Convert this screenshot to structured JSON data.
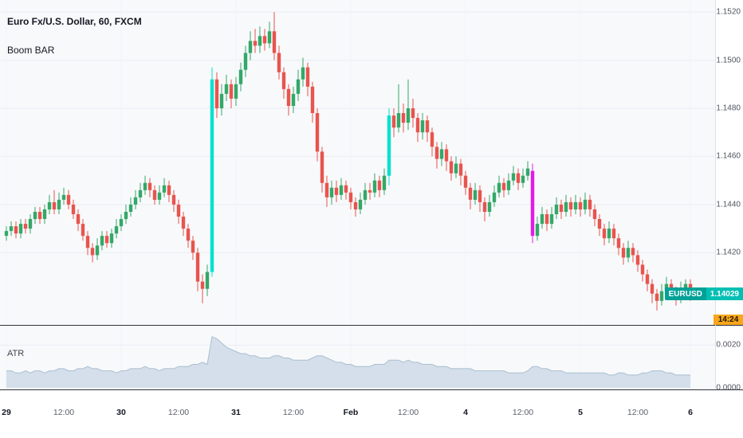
{
  "legend": {
    "title": "Euro Fx/U.S. Dollar, 60, FXCM",
    "indicator": "Boom BAR"
  },
  "price_scale": {
    "last_symbol": "EURUSD",
    "last_price": "1.14029",
    "countdown": "14:24"
  },
  "atr": {
    "label": "ATR"
  },
  "colors": {
    "pane_bg": "#f8f9fb",
    "grid": "#e9edf3",
    "grid_v": "#eff2f7",
    "divider": "#2f333c",
    "up": "#33a868",
    "down": "#e8544e",
    "boom_up": "#00e2cf",
    "boom_down": "#e51ae5",
    "atr_fill": "#d4dfeb",
    "atr_line": "#a9becf",
    "price_label_sym_bg": "#00a197",
    "price_label_bg": "#00bfb3",
    "countdown_bg": "#f8a61b",
    "countdown_text": "#201600"
  },
  "chart_data": [
    {
      "type": "candlestick",
      "pane": "price",
      "title": "Euro Fx/U.S. Dollar, 60, FXCM",
      "y_tick_labels": [
        "1.1520",
        "1.1500",
        "1.1480",
        "1.1460",
        "1.1440",
        "1.1420"
      ],
      "ylim": [
        1.139,
        1.1525
      ],
      "last_price": 1.14029,
      "boom_up_indices": [
        43,
        80
      ],
      "boom_down_indices": [
        110
      ],
      "time_labels": [
        {
          "i": 0,
          "label": "29",
          "major": true
        },
        {
          "i": 12,
          "label": "12:00",
          "major": false
        },
        {
          "i": 24,
          "label": "30",
          "major": true
        },
        {
          "i": 36,
          "label": "12:00",
          "major": false
        },
        {
          "i": 48,
          "label": "31",
          "major": true
        },
        {
          "i": 60,
          "label": "12:00",
          "major": false
        },
        {
          "i": 72,
          "label": "Feb",
          "major": true
        },
        {
          "i": 84,
          "label": "12:00",
          "major": false
        },
        {
          "i": 96,
          "label": "4",
          "major": true
        },
        {
          "i": 108,
          "label": "12:00",
          "major": false
        },
        {
          "i": 120,
          "label": "5",
          "major": true
        },
        {
          "i": 132,
          "label": "12:00",
          "major": false
        },
        {
          "i": 143,
          "label": "6",
          "major": true
        }
      ],
      "candles": [
        [
          1.1427,
          1.1431,
          1.1425,
          1.1429
        ],
        [
          1.1429,
          1.1433,
          1.1427,
          1.1431
        ],
        [
          1.1431,
          1.1433,
          1.1426,
          1.1428
        ],
        [
          1.1428,
          1.1434,
          1.1426,
          1.1432
        ],
        [
          1.1432,
          1.1434,
          1.1428,
          1.143
        ],
        [
          1.143,
          1.1436,
          1.1428,
          1.1434
        ],
        [
          1.1434,
          1.1439,
          1.1432,
          1.1437
        ],
        [
          1.1437,
          1.1439,
          1.1432,
          1.1434
        ],
        [
          1.1434,
          1.144,
          1.1432,
          1.1438
        ],
        [
          1.1438,
          1.1444,
          1.1436,
          1.1441
        ],
        [
          1.1441,
          1.1446,
          1.1436,
          1.1438
        ],
        [
          1.1438,
          1.1445,
          1.1436,
          1.1442
        ],
        [
          1.1442,
          1.1447,
          1.144,
          1.1444
        ],
        [
          1.1444,
          1.1446,
          1.1438,
          1.144
        ],
        [
          1.144,
          1.1442,
          1.1434,
          1.1436
        ],
        [
          1.1436,
          1.1438,
          1.1429,
          1.1432
        ],
        [
          1.1432,
          1.1434,
          1.1425,
          1.1427
        ],
        [
          1.1427,
          1.1429,
          1.1419,
          1.1422
        ],
        [
          1.1422,
          1.1424,
          1.1416,
          1.1419
        ],
        [
          1.1419,
          1.1426,
          1.1417,
          1.1423
        ],
        [
          1.1423,
          1.1429,
          1.1421,
          1.1427
        ],
        [
          1.1427,
          1.1429,
          1.1422,
          1.1424
        ],
        [
          1.1424,
          1.143,
          1.1422,
          1.1428
        ],
        [
          1.1428,
          1.1434,
          1.1426,
          1.1431
        ],
        [
          1.1431,
          1.1436,
          1.1429,
          1.1434
        ],
        [
          1.1434,
          1.144,
          1.1432,
          1.1437
        ],
        [
          1.1437,
          1.1443,
          1.1435,
          1.144
        ],
        [
          1.144,
          1.1446,
          1.1438,
          1.1443
        ],
        [
          1.1443,
          1.1449,
          1.1441,
          1.1446
        ],
        [
          1.1446,
          1.1452,
          1.1444,
          1.1449
        ],
        [
          1.1449,
          1.1451,
          1.1443,
          1.1446
        ],
        [
          1.1446,
          1.1448,
          1.144,
          1.1442
        ],
        [
          1.1442,
          1.1448,
          1.144,
          1.1445
        ],
        [
          1.1445,
          1.1451,
          1.1443,
          1.1448
        ],
        [
          1.1448,
          1.145,
          1.1441,
          1.1444
        ],
        [
          1.1444,
          1.1446,
          1.1437,
          1.144
        ],
        [
          1.144,
          1.1442,
          1.1432,
          1.1435
        ],
        [
          1.1435,
          1.1437,
          1.1427,
          1.143
        ],
        [
          1.143,
          1.1432,
          1.1422,
          1.1425
        ],
        [
          1.1425,
          1.1427,
          1.1417,
          1.142
        ],
        [
          1.142,
          1.1422,
          1.1404,
          1.1408
        ],
        [
          1.1408,
          1.1411,
          1.1399,
          1.1405
        ],
        [
          1.1405,
          1.1415,
          1.1402,
          1.1412
        ],
        [
          1.1412,
          1.1497,
          1.141,
          1.1492
        ],
        [
          1.1492,
          1.1495,
          1.1476,
          1.148
        ],
        [
          1.148,
          1.149,
          1.1477,
          1.1486
        ],
        [
          1.1486,
          1.1494,
          1.1483,
          1.149
        ],
        [
          1.149,
          1.1492,
          1.148,
          1.1484
        ],
        [
          1.1484,
          1.1493,
          1.1481,
          1.149
        ],
        [
          1.149,
          1.1499,
          1.1487,
          1.1496
        ],
        [
          1.1496,
          1.1506,
          1.1493,
          1.1503
        ],
        [
          1.1503,
          1.1512,
          1.15,
          1.1508
        ],
        [
          1.1508,
          1.1513,
          1.1503,
          1.1506
        ],
        [
          1.1506,
          1.1514,
          1.1503,
          1.151
        ],
        [
          1.151,
          1.1513,
          1.1504,
          1.1507
        ],
        [
          1.1507,
          1.1516,
          1.1505,
          1.1512
        ],
        [
          1.1512,
          1.152,
          1.15,
          1.1503
        ],
        [
          1.1503,
          1.1506,
          1.1492,
          1.1495
        ],
        [
          1.1495,
          1.1497,
          1.1484,
          1.1488
        ],
        [
          1.1488,
          1.149,
          1.1477,
          1.1481
        ],
        [
          1.1481,
          1.1489,
          1.1478,
          1.1486
        ],
        [
          1.1486,
          1.1496,
          1.1483,
          1.1492
        ],
        [
          1.1492,
          1.1501,
          1.1489,
          1.1497
        ],
        [
          1.1497,
          1.1499,
          1.1485,
          1.1489
        ],
        [
          1.1489,
          1.1491,
          1.1474,
          1.1478
        ],
        [
          1.1478,
          1.148,
          1.1458,
          1.1462
        ],
        [
          1.1462,
          1.1464,
          1.1445,
          1.1449
        ],
        [
          1.1449,
          1.1452,
          1.1439,
          1.1443
        ],
        [
          1.1443,
          1.145,
          1.144,
          1.1447
        ],
        [
          1.1447,
          1.145,
          1.1441,
          1.1444
        ],
        [
          1.1444,
          1.1451,
          1.1442,
          1.1448
        ],
        [
          1.1448,
          1.145,
          1.1442,
          1.1445
        ],
        [
          1.1445,
          1.1447,
          1.1438,
          1.1441
        ],
        [
          1.1441,
          1.1443,
          1.1435,
          1.1438
        ],
        [
          1.1438,
          1.1445,
          1.1436,
          1.1442
        ],
        [
          1.1442,
          1.1449,
          1.144,
          1.1446
        ],
        [
          1.1446,
          1.1449,
          1.1442,
          1.1445
        ],
        [
          1.1445,
          1.1453,
          1.1443,
          1.145
        ],
        [
          1.145,
          1.1452,
          1.1443,
          1.1446
        ],
        [
          1.1446,
          1.1455,
          1.1444,
          1.1452
        ],
        [
          1.1452,
          1.148,
          1.1448,
          1.1477
        ],
        [
          1.1477,
          1.148,
          1.1468,
          1.1472
        ],
        [
          1.1472,
          1.149,
          1.147,
          1.1478
        ],
        [
          1.1478,
          1.1482,
          1.147,
          1.1474
        ],
        [
          1.1474,
          1.1492,
          1.1471,
          1.148
        ],
        [
          1.148,
          1.1484,
          1.1472,
          1.1476
        ],
        [
          1.1476,
          1.1478,
          1.1466,
          1.147
        ],
        [
          1.147,
          1.1478,
          1.1467,
          1.1475
        ],
        [
          1.1475,
          1.1477,
          1.1466,
          1.147
        ],
        [
          1.147,
          1.1472,
          1.146,
          1.1464
        ],
        [
          1.1464,
          1.1466,
          1.1455,
          1.1459
        ],
        [
          1.1459,
          1.1466,
          1.1456,
          1.1463
        ],
        [
          1.1463,
          1.1465,
          1.1454,
          1.1458
        ],
        [
          1.1458,
          1.146,
          1.145,
          1.1453
        ],
        [
          1.1453,
          1.146,
          1.1451,
          1.1457
        ],
        [
          1.1457,
          1.1459,
          1.1448,
          1.1452
        ],
        [
          1.1452,
          1.1454,
          1.1444,
          1.1447
        ],
        [
          1.1447,
          1.1449,
          1.1438,
          1.1442
        ],
        [
          1.1442,
          1.1449,
          1.144,
          1.1446
        ],
        [
          1.1446,
          1.1448,
          1.1437,
          1.1441
        ],
        [
          1.1441,
          1.1443,
          1.1433,
          1.1437
        ],
        [
          1.1437,
          1.1444,
          1.1435,
          1.1441
        ],
        [
          1.1441,
          1.1448,
          1.1439,
          1.1445
        ],
        [
          1.1445,
          1.1452,
          1.1443,
          1.1449
        ],
        [
          1.1449,
          1.1451,
          1.1443,
          1.1446
        ],
        [
          1.1446,
          1.1453,
          1.1444,
          1.145
        ],
        [
          1.145,
          1.1456,
          1.1448,
          1.1453
        ],
        [
          1.1453,
          1.1455,
          1.1446,
          1.1449
        ],
        [
          1.1449,
          1.1455,
          1.1447,
          1.1452
        ],
        [
          1.1452,
          1.1458,
          1.145,
          1.1455
        ],
        [
          1.1454,
          1.1457,
          1.1424,
          1.1427
        ],
        [
          1.1427,
          1.1435,
          1.1425,
          1.1432
        ],
        [
          1.1432,
          1.1439,
          1.143,
          1.1436
        ],
        [
          1.1436,
          1.1438,
          1.1429,
          1.1432
        ],
        [
          1.1432,
          1.1439,
          1.143,
          1.1436
        ],
        [
          1.1436,
          1.1443,
          1.1434,
          1.144
        ],
        [
          1.144,
          1.1442,
          1.1434,
          1.1437
        ],
        [
          1.1437,
          1.1444,
          1.1435,
          1.1441
        ],
        [
          1.1441,
          1.1443,
          1.1435,
          1.1438
        ],
        [
          1.1438,
          1.1444,
          1.1436,
          1.1441
        ],
        [
          1.1441,
          1.1443,
          1.1435,
          1.1438
        ],
        [
          1.1438,
          1.1445,
          1.1436,
          1.1442
        ],
        [
          1.1442,
          1.1444,
          1.1435,
          1.1438
        ],
        [
          1.1438,
          1.144,
          1.1431,
          1.1434
        ],
        [
          1.1434,
          1.1436,
          1.1427,
          1.143
        ],
        [
          1.143,
          1.1432,
          1.1423,
          1.1426
        ],
        [
          1.1426,
          1.1433,
          1.1424,
          1.143
        ],
        [
          1.143,
          1.1432,
          1.1423,
          1.1426
        ],
        [
          1.1426,
          1.1428,
          1.1419,
          1.1422
        ],
        [
          1.1422,
          1.1424,
          1.1415,
          1.1418
        ],
        [
          1.1418,
          1.1425,
          1.1416,
          1.1422
        ],
        [
          1.1422,
          1.1424,
          1.1416,
          1.1419
        ],
        [
          1.1419,
          1.1421,
          1.1412,
          1.1415
        ],
        [
          1.1415,
          1.1417,
          1.1408,
          1.1411
        ],
        [
          1.1411,
          1.1413,
          1.1404,
          1.1407
        ],
        [
          1.1407,
          1.1409,
          1.1399,
          1.1403
        ],
        [
          1.1403,
          1.1405,
          1.1396,
          1.14
        ],
        [
          1.14,
          1.1407,
          1.1398,
          1.1404
        ],
        [
          1.1404,
          1.141,
          1.1402,
          1.1407
        ],
        [
          1.1407,
          1.1409,
          1.1401,
          1.1404
        ],
        [
          1.1404,
          1.1406,
          1.1398,
          1.1401
        ],
        [
          1.1401,
          1.1408,
          1.1399,
          1.1405
        ],
        [
          1.1405,
          1.1409,
          1.1403,
          1.1407
        ],
        [
          1.1407,
          1.1409,
          1.14,
          1.14029
        ]
      ]
    },
    {
      "type": "area",
      "pane": "indicator",
      "name": "ATR",
      "y_tick_labels": [
        "0.0020",
        "0.0000"
      ],
      "ylim": [
        0,
        0.0028
      ],
      "values": [
        0.0008,
        0.0008,
        0.0007,
        0.0007,
        0.0008,
        0.0007,
        0.0008,
        0.0008,
        0.0007,
        0.0008,
        0.0008,
        0.0009,
        0.0009,
        0.0008,
        0.0008,
        0.0009,
        0.0009,
        0.001,
        0.0009,
        0.0009,
        0.0008,
        0.0008,
        0.0008,
        0.0007,
        0.0008,
        0.0008,
        0.0009,
        0.0009,
        0.0009,
        0.001,
        0.0009,
        0.0009,
        0.0008,
        0.0009,
        0.0009,
        0.0009,
        0.001,
        0.001,
        0.001,
        0.0011,
        0.0011,
        0.0012,
        0.0011,
        0.0024,
        0.0023,
        0.0021,
        0.0019,
        0.0018,
        0.0017,
        0.0016,
        0.0016,
        0.0015,
        0.0015,
        0.0014,
        0.0014,
        0.0014,
        0.0015,
        0.0015,
        0.0014,
        0.0014,
        0.0013,
        0.0013,
        0.0013,
        0.0013,
        0.0014,
        0.0015,
        0.0015,
        0.0014,
        0.0013,
        0.0012,
        0.0012,
        0.0011,
        0.0011,
        0.001,
        0.001,
        0.001,
        0.001,
        0.0011,
        0.0011,
        0.0011,
        0.0013,
        0.0013,
        0.0013,
        0.0012,
        0.0013,
        0.0012,
        0.0012,
        0.0011,
        0.0011,
        0.0011,
        0.001,
        0.001,
        0.001,
        0.0009,
        0.0009,
        0.0009,
        0.0009,
        0.0009,
        0.0008,
        0.0008,
        0.0008,
        0.0008,
        0.0008,
        0.0008,
        0.0008,
        0.0007,
        0.0007,
        0.0007,
        0.0007,
        0.0008,
        0.001,
        0.001,
        0.0009,
        0.0009,
        0.0008,
        0.0008,
        0.0008,
        0.0007,
        0.0007,
        0.0007,
        0.0007,
        0.0007,
        0.0007,
        0.0007,
        0.0007,
        0.0007,
        0.0006,
        0.0006,
        0.0007,
        0.0007,
        0.0006,
        0.0006,
        0.0006,
        0.0007,
        0.0007,
        0.0008,
        0.0008,
        0.0008,
        0.0007,
        0.0007,
        0.0006,
        0.0006,
        0.0006,
        0.0006
      ]
    }
  ]
}
